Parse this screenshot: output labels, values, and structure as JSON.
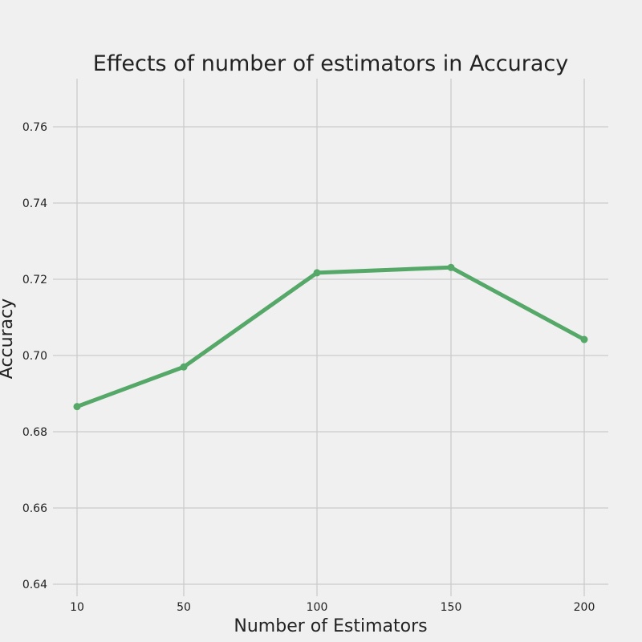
{
  "chart_data": {
    "type": "line",
    "title": "Effects of number of estimators in Accuracy",
    "xlabel": "Number of Estimators",
    "ylabel": "Accuracy",
    "x": [
      10,
      50,
      100,
      150,
      200
    ],
    "series": [
      {
        "values": [
          0.6866,
          0.697,
          0.7217,
          0.7231,
          0.7042
        ]
      }
    ],
    "xlim": [
      -0.8,
      200
    ],
    "ylim": [
      0.64,
      0.7725
    ],
    "yticks": [
      0.64,
      0.66,
      0.68,
      0.7,
      0.72,
      0.74,
      0.76
    ],
    "ytick_labels": [
      "0.64",
      "0.66",
      "0.68",
      "0.70",
      "0.72",
      "0.74",
      "0.76"
    ],
    "xtick_labels": [
      "10",
      "50",
      "100",
      "150",
      "200"
    ],
    "grid": true,
    "colors": {
      "line": "#55a868",
      "grid": "#cbcbcb",
      "background": "#f0f0f0",
      "text": "#222222"
    }
  }
}
